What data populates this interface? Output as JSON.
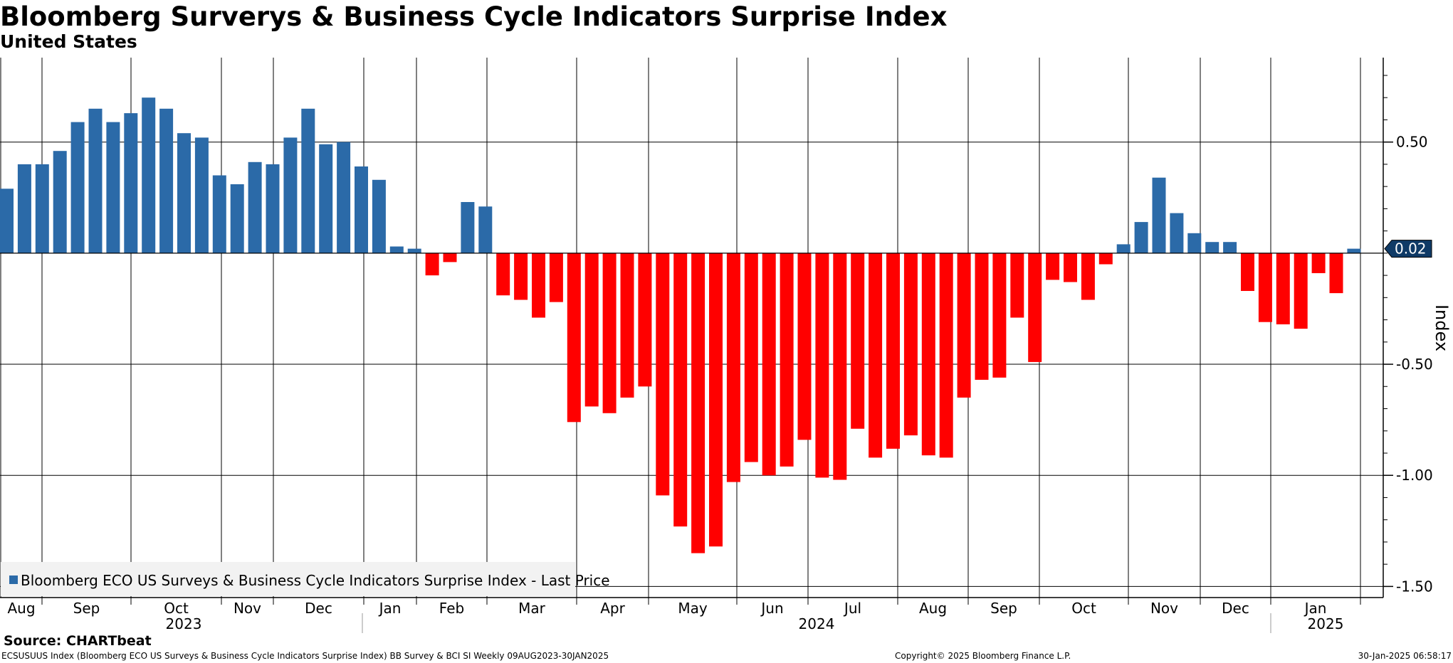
{
  "title": "Bloomberg Surverys & Business Cycle Indicators Surprise Index",
  "subtitle": "United States",
  "source": "Source: CHARTbeat",
  "footer": {
    "left": "ECSUSUUS Index (Bloomberg ECO US Surveys & Business Cycle Indicators Surprise Index) BB Survey & BCI SI  Weekly 09AUG2023-30JAN2025",
    "center": "Copyright© 2025 Bloomberg Finance L.P.",
    "right": "30-Jan-2025 06:58:17"
  },
  "colors": {
    "positive": "#2b6aa8",
    "negative": "#ff0000",
    "grid": "#000000",
    "legend_bg": "#f2f2f2"
  },
  "chart_data": {
    "type": "bar",
    "ylabel": "Index",
    "ylim": [
      -1.55,
      0.88
    ],
    "yticks": [
      0.5,
      -0.5,
      -1.0,
      -1.5
    ],
    "ytick_labels": [
      "0.50",
      "-0.50",
      "-1.00",
      "-1.50"
    ],
    "last_value": 0.02,
    "last_value_label": "0.02",
    "legend": "Bloomberg ECO US Surveys & Business Cycle Indicators Surprise Index - Last Price",
    "months": [
      "Aug",
      "Sep",
      "Oct",
      "Nov",
      "Dec",
      "Jan",
      "Feb",
      "Mar",
      "Apr",
      "May",
      "Jun",
      "Jul",
      "Aug",
      "Sep",
      "Oct",
      "Nov",
      "Dec",
      "Jan"
    ],
    "years": [
      "2023",
      "2024",
      "2025"
    ],
    "values": [
      0.29,
      0.4,
      0.4,
      0.46,
      0.59,
      0.65,
      0.59,
      0.63,
      0.7,
      0.65,
      0.54,
      0.52,
      0.35,
      0.31,
      0.41,
      0.4,
      0.52,
      0.65,
      0.49,
      0.5,
      0.39,
      0.33,
      0.03,
      0.02,
      -0.1,
      -0.04,
      0.23,
      0.21,
      -0.19,
      -0.21,
      -0.29,
      -0.22,
      -0.76,
      -0.69,
      -0.72,
      -0.65,
      -0.6,
      -1.09,
      -1.23,
      -1.35,
      -1.32,
      -1.03,
      -0.94,
      -1.0,
      -0.96,
      -0.84,
      -1.01,
      -1.02,
      -0.79,
      -0.92,
      -0.88,
      -0.82,
      -0.91,
      -0.92,
      -0.65,
      -0.57,
      -0.56,
      -0.29,
      -0.49,
      -0.12,
      -0.13,
      -0.21,
      -0.05,
      0.04,
      0.14,
      0.34,
      0.18,
      0.09,
      0.05,
      0.05,
      -0.17,
      -0.31,
      -0.32,
      -0.34,
      -0.09,
      -0.18,
      0.02
    ]
  }
}
